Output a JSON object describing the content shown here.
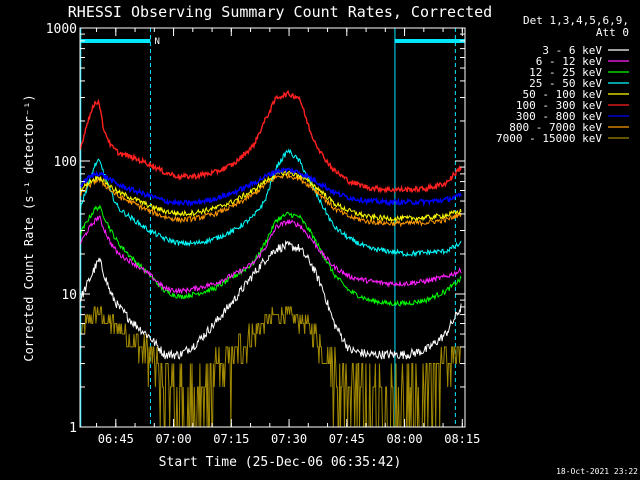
{
  "chart_data": {
    "type": "line",
    "title": "RHESSI Observing Summary Count Rates, Corrected",
    "xlabel": "Start Time (25-Dec-06 06:35:42)",
    "ylabel": "Corrected Count Rate (s⁻¹ detector⁻¹)",
    "yscale": "log",
    "ylim": [
      1,
      1000
    ],
    "xlim_minutes": [
      0,
      100
    ],
    "x_ticks": [
      "06:45",
      "07:00",
      "07:15",
      "07:30",
      "07:45",
      "08:00",
      "08:15"
    ],
    "x_tick_minutes": [
      9.3,
      24.3,
      39.3,
      54.3,
      69.3,
      84.3,
      99.3
    ],
    "y_ticks": [
      "1",
      "10",
      "100",
      "1000"
    ],
    "y_tick_values": [
      1,
      10,
      100,
      1000
    ],
    "legend_header": [
      "Det 1,3,4,5,6,9,",
      "Att 0"
    ],
    "legend_position": "right",
    "footer_date": "18-Oct-2021 23:22",
    "marker_label": "N",
    "night_bar_color": "#00e6ff",
    "night_intervals": [
      [
        0,
        18.3
      ],
      [
        81.8,
        100
      ]
    ],
    "dashed_markers": [
      18.3,
      97.5
    ],
    "solid_markers": [
      0.2,
      81.8
    ],
    "x": [
      0,
      2,
      4,
      5,
      6,
      8,
      10,
      14,
      18,
      22,
      26,
      30,
      35,
      40,
      45,
      48,
      51,
      54,
      57,
      60,
      63,
      66,
      70,
      75,
      80,
      85,
      90,
      95,
      99
    ],
    "series": [
      {
        "name": "3 - 6 keV",
        "color": "#ffffff",
        "values": [
          9,
          12,
          16,
          18,
          15,
          10,
          8,
          6,
          4.8,
          3.5,
          3.5,
          4.2,
          6,
          9,
          14,
          18,
          22,
          23,
          22,
          17,
          11,
          6,
          3.8,
          3.5,
          3.5,
          3.5,
          3.8,
          5,
          8
        ]
      },
      {
        "name": "6 - 12 keV",
        "color": "#ff20ff",
        "values": [
          24,
          30,
          36,
          38,
          32,
          24,
          20,
          17,
          14,
          11,
          10.5,
          11,
          12,
          14,
          17,
          22,
          32,
          35,
          33,
          26,
          20,
          16,
          13.5,
          12.5,
          12,
          12,
          12.5,
          13.5,
          15
        ]
      },
      {
        "name": "12 - 25 keV",
        "color": "#00ff00",
        "values": [
          28,
          36,
          44,
          45,
          40,
          30,
          24,
          18,
          14,
          10.5,
          9.5,
          10,
          11,
          13.5,
          17,
          24,
          36,
          40,
          38,
          29,
          20,
          14,
          10.5,
          9,
          8.5,
          8.5,
          9,
          10.5,
          13
        ]
      },
      {
        "name": "25 - 50 keV",
        "color": "#00ffff",
        "values": [
          44,
          65,
          95,
          100,
          85,
          58,
          44,
          36,
          30,
          26,
          24,
          24,
          26,
          30,
          38,
          50,
          90,
          120,
          100,
          68,
          46,
          32,
          26,
          22,
          21,
          20,
          20.5,
          21,
          24
        ]
      },
      {
        "name": "50 - 100 keV",
        "color": "#ffff00",
        "values": [
          60,
          68,
          74,
          76,
          72,
          64,
          58,
          52,
          46,
          42,
          40,
          41,
          44,
          50,
          60,
          70,
          80,
          82,
          78,
          68,
          58,
          48,
          42,
          38,
          37,
          37,
          37.5,
          39,
          42
        ]
      },
      {
        "name": "100 - 300 keV",
        "color": "#ff2020",
        "values": [
          120,
          200,
          280,
          275,
          180,
          130,
          115,
          105,
          95,
          82,
          76,
          77,
          82,
          95,
          130,
          200,
          300,
          320,
          300,
          160,
          110,
          85,
          70,
          63,
          61,
          61,
          62,
          68,
          90
        ]
      },
      {
        "name": "300 - 800 keV",
        "color": "#0000ff",
        "values": [
          65,
          74,
          80,
          81,
          78,
          72,
          66,
          60,
          55,
          50,
          48,
          48.5,
          52,
          58,
          68,
          76,
          84,
          86,
          82,
          74,
          66,
          58,
          53,
          50,
          49,
          49,
          49.5,
          51,
          55
        ]
      },
      {
        "name": "800 - 7000 keV",
        "color": "#ff9900",
        "values": [
          56,
          64,
          71,
          72,
          68,
          60,
          54,
          48,
          42,
          38,
          36,
          37,
          40,
          46,
          56,
          66,
          76,
          78,
          74,
          64,
          54,
          44,
          38,
          35,
          34,
          34,
          34.5,
          36,
          40
        ]
      },
      {
        "name": "7000 - 15000 keV",
        "color": "#a08800",
        "values": [
          5,
          6,
          7,
          7,
          6.5,
          6,
          5.5,
          4.5,
          3.5,
          2.5,
          1.8,
          1.8,
          2.5,
          3.5,
          5,
          6,
          7,
          7,
          6.5,
          5.5,
          4,
          3,
          2.2,
          1.8,
          1.8,
          1.8,
          2,
          3,
          4
        ]
      }
    ]
  }
}
